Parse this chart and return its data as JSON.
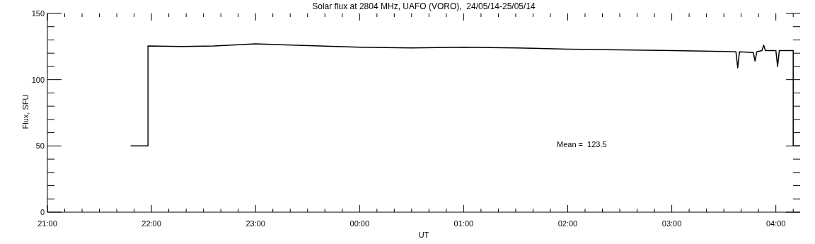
{
  "chart_data": {
    "type": "line",
    "title": "Solar flux at 2804 MHz, UAFO (VORO),  24/05/14-25/05/14",
    "xlabel": "UT",
    "ylabel": "Flux, SFU",
    "annotations": [
      "Mean =  123.5"
    ],
    "x": [
      "--05-24T21:48",
      "--05-24T21:58",
      "--05-24T21:58",
      "--05-24T22:18",
      "--05-24T22:36",
      "--05-24T23:00",
      "--05-24T23:24",
      "--05-25T00:00",
      "--05-25T00:30",
      "--05-25T01:00",
      "--05-25T01:30",
      "--05-25T02:00",
      "--05-25T02:30",
      "--05-25T03:00",
      "--05-25T03:24",
      "--05-25T03:37",
      "--05-25T03:38",
      "--05-25T03:39",
      "--05-25T03:47",
      "--05-25T03:48",
      "--05-25T03:49",
      "--05-25T03:52",
      "--05-25T03:53",
      "--05-25T03:54",
      "--05-25T04:00",
      "--05-25T04:01",
      "--05-25T04:02",
      "--05-25T04:10",
      "--05-25T04:10",
      "--05-25T04:14"
    ],
    "series": [
      {
        "color": "#000000",
        "values": [
          50,
          50,
          125.5,
          125,
          125.5,
          127,
          126,
          124.5,
          124,
          124.5,
          124,
          123,
          122.5,
          122,
          121.5,
          121,
          109,
          121,
          120.5,
          114,
          121,
          122,
          126,
          122,
          122,
          110,
          122,
          122,
          50,
          50
        ]
      }
    ],
    "xlim": [
      "--05-24T21:00",
      "--05-25T04:14"
    ],
    "xticks": [
      {
        "value": "--05-24T21:00",
        "label": "21:00"
      },
      {
        "value": "--05-24T21:10",
        "label": null
      },
      {
        "value": "--05-24T21:20",
        "label": null
      },
      {
        "value": "--05-24T21:30",
        "label": null
      },
      {
        "value": "--05-24T21:40",
        "label": null
      },
      {
        "value": "--05-24T21:50",
        "label": null
      },
      {
        "value": "--05-24T22:00",
        "label": "22:00"
      },
      {
        "value": "--05-24T22:10",
        "label": null
      },
      {
        "value": "--05-24T22:20",
        "label": null
      },
      {
        "value": "--05-24T22:30",
        "label": null
      },
      {
        "value": "--05-24T22:40",
        "label": null
      },
      {
        "value": "--05-24T22:50",
        "label": null
      },
      {
        "value": "--05-24T23:00",
        "label": "23:00"
      },
      {
        "value": "--05-24T23:10",
        "label": null
      },
      {
        "value": "--05-24T23:20",
        "label": null
      },
      {
        "value": "--05-24T23:30",
        "label": null
      },
      {
        "value": "--05-24T23:40",
        "label": null
      },
      {
        "value": "--05-24T23:50",
        "label": null
      },
      {
        "value": "--05-25T00:00",
        "label": "00:00"
      },
      {
        "value": "--05-25T00:10",
        "label": null
      },
      {
        "value": "--05-25T00:20",
        "label": null
      },
      {
        "value": "--05-25T00:30",
        "label": null
      },
      {
        "value": "--05-25T00:40",
        "label": null
      },
      {
        "value": "--05-25T00:50",
        "label": null
      },
      {
        "value": "--05-25T01:00",
        "label": "01:00"
      },
      {
        "value": "--05-25T01:10",
        "label": null
      },
      {
        "value": "--05-25T01:20",
        "label": null
      },
      {
        "value": "--05-25T01:30",
        "label": null
      },
      {
        "value": "--05-25T01:40",
        "label": null
      },
      {
        "value": "--05-25T01:50",
        "label": null
      },
      {
        "value": "--05-25T02:00",
        "label": "02:00"
      },
      {
        "value": "--05-25T02:10",
        "label": null
      },
      {
        "value": "--05-25T02:20",
        "label": null
      },
      {
        "value": "--05-25T02:30",
        "label": null
      },
      {
        "value": "--05-25T02:40",
        "label": null
      },
      {
        "value": "--05-25T02:50",
        "label": null
      },
      {
        "value": "--05-25T03:00",
        "label": "03:00"
      },
      {
        "value": "--05-25T03:10",
        "label": null
      },
      {
        "value": "--05-25T03:20",
        "label": null
      },
      {
        "value": "--05-25T03:30",
        "label": null
      },
      {
        "value": "--05-25T03:40",
        "label": null
      },
      {
        "value": "--05-25T03:50",
        "label": null
      },
      {
        "value": "--05-25T04:00",
        "label": "04:00"
      },
      {
        "value": "--05-25T04:10",
        "label": null
      }
    ],
    "ylim": [
      0,
      150
    ],
    "yticks": [
      0,
      {
        "value": 10,
        "label": null
      },
      {
        "value": 20,
        "label": null
      },
      {
        "value": 30,
        "label": null
      },
      {
        "value": 40,
        "label": null
      },
      50,
      {
        "value": 60,
        "label": null
      },
      {
        "value": 70,
        "label": null
      },
      {
        "value": 80,
        "label": null
      },
      {
        "value": 90,
        "label": null
      },
      100,
      {
        "value": 110,
        "label": null
      },
      {
        "value": 120,
        "label": null
      },
      {
        "value": 130,
        "label": null
      },
      {
        "value": 140,
        "label": null
      },
      150
    ],
    "grid": false,
    "legend": false,
    "marker": "none",
    "line_style": "solid"
  }
}
